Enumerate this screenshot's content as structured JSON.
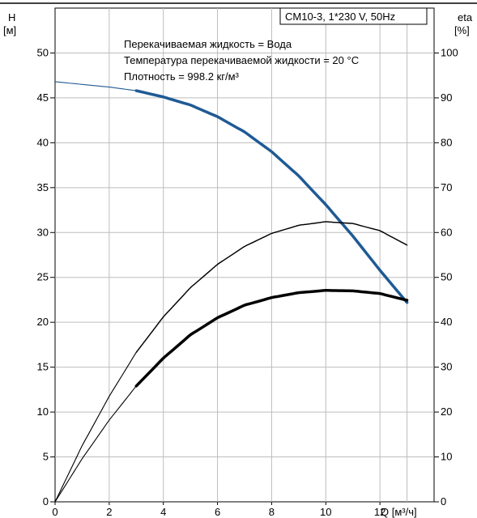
{
  "chart_data": {
    "type": "line",
    "title_box": "CM10-3, 1*230 V, 50Hz",
    "info_lines": [
      "Перекачиваемая жидкость = Вода",
      "Температура перекачиваемой жидкости = 20 °C",
      "Плотность = 998.2 кг/м³"
    ],
    "left_axis_label_top": "H",
    "left_axis_label_unit": "[м]",
    "right_axis_label_top": "eta",
    "right_axis_label_unit": "[%]",
    "x_axis_label": "Q [м³/ч]",
    "xlim": [
      0,
      14
    ],
    "ylim_left": [
      0,
      55
    ],
    "ylim_right": [
      0,
      110
    ],
    "x_ticks": [
      0,
      2,
      4,
      6,
      8,
      10,
      12
    ],
    "y_left_ticks": [
      0,
      5,
      10,
      15,
      20,
      25,
      30,
      35,
      40,
      45,
      50
    ],
    "y_right_ticks": [
      0,
      10,
      20,
      30,
      40,
      50,
      60,
      70,
      80,
      90,
      100
    ],
    "grid": true,
    "series": [
      {
        "id": "head",
        "axis": "left",
        "color": "#1f5a94",
        "x": [
          0,
          1,
          2,
          3,
          4,
          5,
          6,
          7,
          8,
          9,
          10,
          11,
          12,
          13,
          14
        ],
        "y": [
          46.8,
          46.5,
          46.2,
          45.8,
          45.1,
          44.2,
          42.9,
          41.2,
          39.0,
          36.3,
          33.1,
          29.6,
          25.8,
          22.2,
          22.0
        ],
        "operating_range": [
          3,
          14
        ]
      },
      {
        "id": "efficiency",
        "axis": "right",
        "color": "#000000",
        "x": [
          0,
          1,
          2,
          3,
          4,
          5,
          6,
          7,
          8,
          9,
          10,
          11,
          12,
          13,
          14
        ],
        "y": [
          0,
          12.5,
          23.5,
          33.3,
          41.2,
          47.7,
          52.9,
          56.9,
          59.8,
          61.6,
          62.4,
          62.0,
          60.4,
          57.2,
          57.0
        ],
        "operating_range": [
          3,
          14
        ]
      },
      {
        "id": "efficiency_2",
        "axis": "right",
        "color": "#000000",
        "x": [
          0,
          1,
          2,
          3,
          4,
          5,
          6,
          7,
          8,
          9,
          10,
          11,
          12,
          13,
          14
        ],
        "y": [
          0,
          9.6,
          18.2,
          25.8,
          32.0,
          37.2,
          41.0,
          43.8,
          45.5,
          46.6,
          47.1,
          47.0,
          46.4,
          44.9,
          44.7
        ],
        "operating_range": [
          3,
          14
        ]
      }
    ]
  }
}
